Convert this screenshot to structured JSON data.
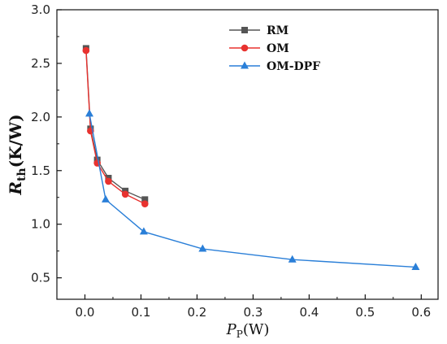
{
  "chart_data": {
    "type": "line",
    "xlim": [
      -0.05,
      0.63
    ],
    "ylim": [
      0.3,
      3.0
    ],
    "x_ticks": [
      0.0,
      0.1,
      0.2,
      0.3,
      0.4,
      0.5,
      0.6
    ],
    "x_tick_labels": [
      "0.0",
      "0.1",
      "0.2",
      "0.3",
      "0.4",
      "0.5",
      "0.6"
    ],
    "y_ticks": [
      0.5,
      1.0,
      1.5,
      2.0,
      2.5,
      3.0
    ],
    "y_tick_labels": [
      "0.5",
      "1.0",
      "1.5",
      "2.0",
      "2.5",
      "3.0"
    ],
    "ylabel": {
      "main": "R",
      "sub": "th",
      "rest": "(K/W)"
    },
    "xlabel": {
      "main": "P",
      "sub": "P",
      "rest": "(W)"
    },
    "legend_position": "top-right",
    "grid": false,
    "series": [
      {
        "name": "RM",
        "color": "#555555",
        "marker": "square",
        "x": [
          0.002,
          0.01,
          0.022,
          0.042,
          0.072,
          0.107
        ],
        "y": [
          2.64,
          1.89,
          1.6,
          1.43,
          1.31,
          1.23
        ]
      },
      {
        "name": "OM",
        "color": "#e8322f",
        "marker": "circle",
        "x": [
          0.002,
          0.01,
          0.022,
          0.042,
          0.072,
          0.107
        ],
        "y": [
          2.62,
          1.87,
          1.57,
          1.4,
          1.28,
          1.19
        ]
      },
      {
        "name": "OM-DPF",
        "color": "#2a7fd8",
        "marker": "triangle",
        "x": [
          0.008,
          0.037,
          0.105,
          0.21,
          0.37,
          0.59
        ],
        "y": [
          2.03,
          1.23,
          0.93,
          0.77,
          0.67,
          0.6
        ]
      }
    ]
  }
}
